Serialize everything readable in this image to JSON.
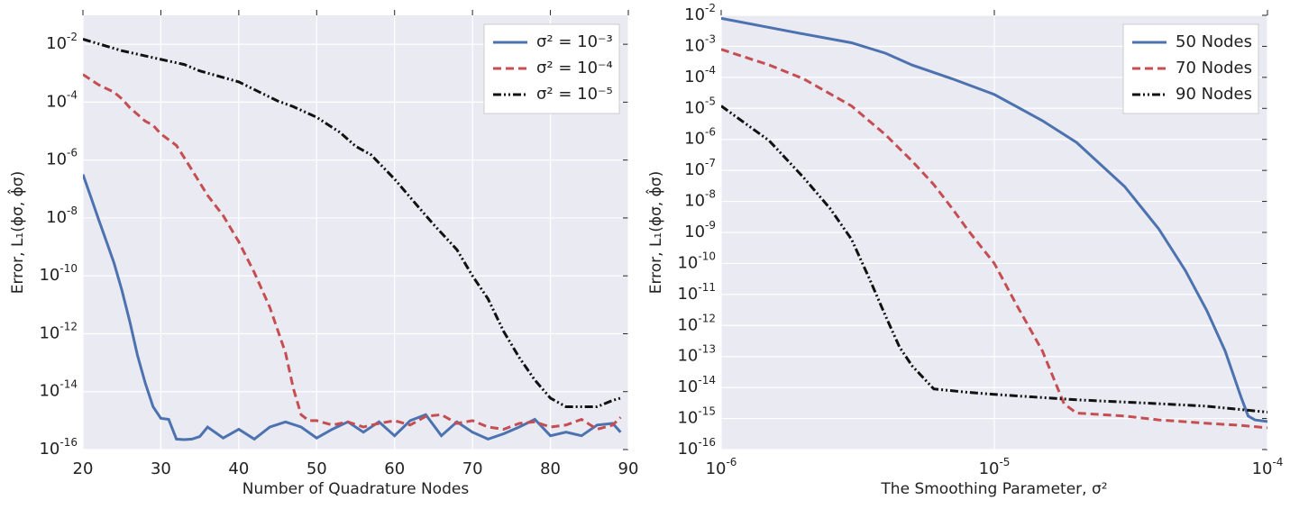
{
  "chart_data": [
    {
      "type": "line",
      "xlabel": "Number of Quadrature Nodes",
      "ylabel": "Error, L₁(ϕσ, ϕ̂σ)",
      "xscale": "linear",
      "yscale": "log",
      "grid": true,
      "legend": "upper right",
      "xlim": [
        20,
        90
      ],
      "xticks": [
        20,
        30,
        40,
        50,
        60,
        70,
        80,
        90
      ],
      "ylim": [
        1e-16,
        0.1
      ],
      "yticks": [
        {
          "value": 1e-16,
          "label": "10",
          "sup": "-16"
        },
        {
          "value": 1e-14,
          "label": "10",
          "sup": "-14"
        },
        {
          "value": 1e-12,
          "label": "10",
          "sup": "-12"
        },
        {
          "value": 1e-10,
          "label": "10",
          "sup": "-10"
        },
        {
          "value": 1e-08,
          "label": "10",
          "sup": "-8"
        },
        {
          "value": 1e-06,
          "label": "10",
          "sup": "-6"
        },
        {
          "value": 0.0001,
          "label": "10",
          "sup": "-4"
        },
        {
          "value": 0.01,
          "label": "10",
          "sup": "-2"
        }
      ],
      "series": [
        {
          "name": "σ² = 10⁻³",
          "color": "#4c72b0",
          "dash": "solid",
          "x": [
            20,
            21,
            22,
            23,
            24,
            25,
            26,
            27,
            28,
            29,
            30,
            31,
            32,
            33,
            34,
            35,
            36,
            38,
            40,
            42,
            44,
            46,
            48,
            50,
            52,
            54,
            56,
            58,
            60,
            62,
            64,
            66,
            68,
            70,
            72,
            74,
            76,
            78,
            80,
            82,
            84,
            86,
            88,
            89
          ],
          "values": [
            3.2e-07,
            5.5e-08,
            9e-09,
            1.6e-09,
            2.7e-10,
            3.2e-11,
            2.7e-12,
            1.8e-13,
            2e-14,
            3e-15,
            1.2e-15,
            1.1e-15,
            2.3e-16,
            2.2e-16,
            2.3e-16,
            2.8e-16,
            6e-16,
            2.5e-16,
            5e-16,
            2.3e-16,
            6e-16,
            9e-16,
            6e-16,
            2.5e-16,
            5e-16,
            9e-16,
            4e-16,
            9e-16,
            3e-16,
            1e-15,
            1.6e-15,
            3e-16,
            9e-16,
            4e-16,
            2.3e-16,
            3.5e-16,
            6e-16,
            1.1e-15,
            3e-16,
            4e-16,
            3e-16,
            7e-16,
            8e-16,
            4e-16
          ]
        },
        {
          "name": "σ² = 10⁻⁴",
          "color": "#c44e52",
          "dash": "dashed",
          "x": [
            20,
            22,
            24,
            25,
            26,
            28,
            29,
            30,
            32,
            33,
            34,
            36,
            38,
            40,
            42,
            44,
            46,
            47,
            48,
            49,
            50,
            52,
            54,
            56,
            58,
            60,
            62,
            64,
            66,
            68,
            70,
            72,
            74,
            76,
            78,
            80,
            82,
            84,
            86,
            88,
            89
          ],
          "values": [
            0.0009,
            0.0004,
            0.00022,
            0.00013,
            6.5e-05,
            2.2e-05,
            1.6e-05,
            8e-06,
            3.2e-06,
            1.2e-06,
            4.5e-07,
            6e-08,
            1.2e-08,
            1.5e-09,
            1.3e-10,
            8e-12,
            2.2e-13,
            1.3e-14,
            1.6e-15,
            1e-15,
            1e-15,
            7e-16,
            9e-16,
            6e-16,
            8e-16,
            1e-15,
            7e-16,
            1.4e-15,
            1.6e-15,
            8e-16,
            1e-15,
            6e-16,
            5e-16,
            8e-16,
            9e-16,
            6e-16,
            7e-16,
            1.1e-15,
            5e-16,
            7e-16,
            1.3e-15
          ]
        },
        {
          "name": "σ² = 10⁻⁵",
          "color": "#111111",
          "dash": "dashdot",
          "x": [
            20,
            25,
            30,
            33,
            35,
            40,
            43,
            45,
            47,
            50,
            53,
            55,
            57,
            60,
            63,
            65,
            68,
            70,
            72,
            74,
            76,
            78,
            80,
            82,
            84,
            86,
            88,
            89
          ],
          "values": [
            0.015,
            0.006,
            0.003,
            0.002,
            0.0012,
            0.0005,
            0.0002,
            0.00011,
            7e-05,
            3e-05,
            9e-06,
            3e-06,
            1.5e-06,
            2.2e-07,
            2.5e-08,
            6e-09,
            8e-10,
            1e-10,
            1.6e-11,
            1.2e-12,
            1.5e-13,
            2.5e-14,
            6e-15,
            3e-15,
            3e-15,
            3e-15,
            5e-15,
            6e-15
          ]
        }
      ]
    },
    {
      "type": "line",
      "xlabel": "The Smoothing Parameter, σ²",
      "ylabel": "Error, L₁(ϕσ, ϕ̂σ)",
      "xscale": "log",
      "yscale": "log",
      "grid": true,
      "legend": "upper right",
      "xlim": [
        1e-06,
        0.0001
      ],
      "xticks": [
        {
          "value": 1e-06,
          "label": "10",
          "sup": "-6"
        },
        {
          "value": 1e-05,
          "label": "10",
          "sup": "-5"
        },
        {
          "value": 0.0001,
          "label": "10",
          "sup": "-4"
        }
      ],
      "ylim": [
        1e-16,
        0.01
      ],
      "yticks": [
        {
          "value": 1e-16,
          "label": "10",
          "sup": "-16"
        },
        {
          "value": 1e-15,
          "label": "10",
          "sup": "-15"
        },
        {
          "value": 1e-14,
          "label": "10",
          "sup": "-14"
        },
        {
          "value": 1e-13,
          "label": "10",
          "sup": "-13"
        },
        {
          "value": 1e-12,
          "label": "10",
          "sup": "-12"
        },
        {
          "value": 1e-11,
          "label": "10",
          "sup": "-11"
        },
        {
          "value": 1e-10,
          "label": "10",
          "sup": "-10"
        },
        {
          "value": 1e-09,
          "label": "10",
          "sup": "-9"
        },
        {
          "value": 1e-08,
          "label": "10",
          "sup": "-8"
        },
        {
          "value": 1e-07,
          "label": "10",
          "sup": "-7"
        },
        {
          "value": 1e-06,
          "label": "10",
          "sup": "-6"
        },
        {
          "value": 1e-05,
          "label": "10",
          "sup": "-5"
        },
        {
          "value": 0.0001,
          "label": "10",
          "sup": "-4"
        },
        {
          "value": 0.001,
          "label": "10",
          "sup": "-3"
        },
        {
          "value": 0.01,
          "label": "10",
          "sup": "-2"
        }
      ],
      "series": [
        {
          "name": "50 Nodes",
          "color": "#4c72b0",
          "dash": "solid",
          "x": [
            1e-06,
            2e-06,
            3e-06,
            4e-06,
            5e-06,
            7e-06,
            1e-05,
            1.5e-05,
            2e-05,
            3e-05,
            4e-05,
            5e-05,
            6e-05,
            7e-05,
            8e-05,
            8.5e-05,
            9e-05,
            0.0001
          ],
          "values": [
            0.008,
            0.0025,
            0.0013,
            0.0006,
            0.00025,
            9e-05,
            2.8e-05,
            4e-06,
            8e-07,
            3e-08,
            1.3e-09,
            6e-11,
            3e-12,
            1.5e-13,
            5e-15,
            1.2e-15,
            9e-16,
            8e-16
          ]
        },
        {
          "name": "70 Nodes",
          "color": "#c44e52",
          "dash": "dashed",
          "x": [
            1e-06,
            1.5e-06,
            2e-06,
            3e-06,
            4e-06,
            5e-06,
            6e-06,
            7e-06,
            8e-06,
            1e-05,
            1.2e-05,
            1.5e-05,
            1.8e-05,
            2e-05,
            3e-05,
            4e-05,
            6e-05,
            8e-05,
            0.0001
          ],
          "values": [
            0.0008,
            0.00025,
            9e-05,
            1.2e-05,
            1.4e-06,
            2e-07,
            3.5e-08,
            6e-09,
            1.2e-09,
            1e-10,
            5e-12,
            1.5e-13,
            3e-15,
            1.5e-15,
            1.2e-15,
            9e-16,
            7e-16,
            6e-16,
            5e-16
          ]
        },
        {
          "name": "90 Nodes",
          "color": "#111111",
          "dash": "dashdot",
          "x": [
            1e-06,
            1.5e-06,
            2e-06,
            2.5e-06,
            3e-06,
            3.5e-06,
            4e-06,
            4.5e-06,
            5e-06,
            6e-06,
            8e-06,
            1e-05,
            2e-05,
            4e-05,
            6e-05,
            0.0001
          ],
          "values": [
            1.2e-05,
            9e-07,
            6e-08,
            6e-09,
            6e-10,
            3e-11,
            2e-12,
            2e-13,
            5e-14,
            9e-15,
            7e-15,
            6e-15,
            4e-15,
            3e-15,
            2.5e-15,
            1.6e-15
          ]
        }
      ]
    }
  ]
}
